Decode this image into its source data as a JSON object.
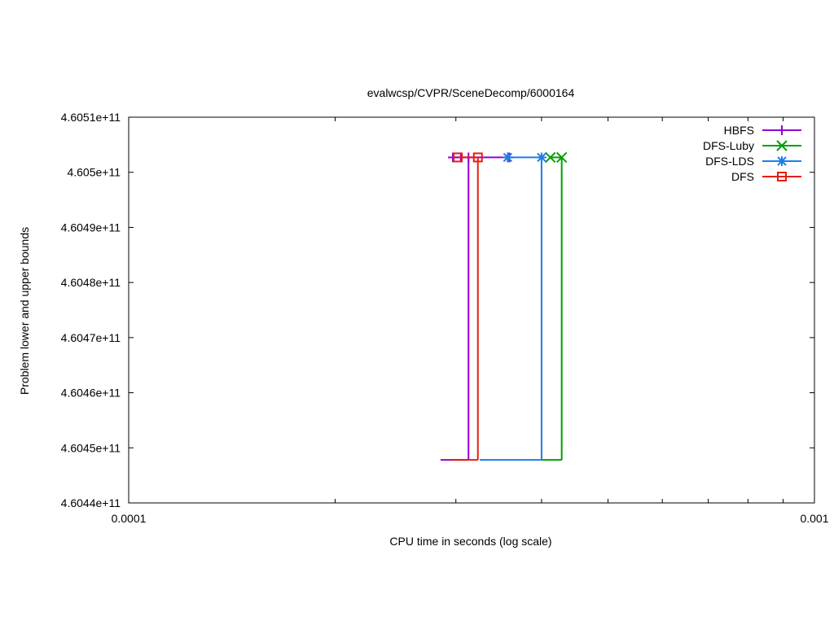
{
  "chart_data": {
    "type": "line",
    "title": "evalwcsp/CVPR/SceneDecomp/6000164",
    "xlabel": "CPU time in seconds (log scale)",
    "ylabel": "Problem lower and upper bounds",
    "x_scale": "log",
    "xlim": [
      0.0001,
      0.001
    ],
    "ylim": [
      460440000000,
      460510000000
    ],
    "x_ticks": [
      {
        "value": 0.0001,
        "label": "0.0001"
      },
      {
        "value": 0.001,
        "label": "0.001"
      }
    ],
    "y_ticks": [
      {
        "value": 460440000000,
        "label": "4.6044e+11"
      },
      {
        "value": 460450000000,
        "label": "4.6045e+11"
      },
      {
        "value": 460460000000,
        "label": "4.6046e+11"
      },
      {
        "value": 460470000000,
        "label": "4.6047e+11"
      },
      {
        "value": 460480000000,
        "label": "4.6048e+11"
      },
      {
        "value": 460490000000,
        "label": "4.6049e+11"
      },
      {
        "value": 460500000000,
        "label": "4.605e+11"
      },
      {
        "value": 460510000000,
        "label": "4.6051e+11"
      }
    ],
    "grid": false,
    "legend_position": "top-right",
    "series": [
      {
        "name": "HBFS",
        "color": "#9400d3",
        "marker": "plus",
        "lower": [
          [
            0.000285,
            460447800000
          ],
          [
            0.000313,
            460447800000
          ]
        ],
        "upper": [
          [
            0.000297,
            460502700000
          ],
          [
            0.000305,
            460502700000
          ],
          [
            0.000313,
            460502700000
          ],
          [
            0.000359,
            460502700000
          ]
        ],
        "jump_x": 0.000313
      },
      {
        "name": "DFS-Luby",
        "color": "#00a000",
        "marker": "x",
        "lower": [
          [
            0.0004,
            460447800000
          ],
          [
            0.000428,
            460447800000
          ]
        ],
        "upper": [
          [
            0.000412,
            460502700000
          ],
          [
            0.000428,
            460502700000
          ]
        ],
        "jump_x": 0.000428
      },
      {
        "name": "DFS-LDS",
        "color": "#1e7ee6",
        "marker": "star",
        "lower": [
          [
            0.000325,
            460447800000
          ],
          [
            0.0004,
            460447800000
          ]
        ],
        "upper": [
          [
            0.000357,
            460502700000
          ],
          [
            0.0004,
            460502700000
          ]
        ],
        "jump_x": 0.0004
      },
      {
        "name": "DFS",
        "color": "#e51e10",
        "marker": "box",
        "lower": [
          [
            0.000295,
            460447800000
          ],
          [
            0.000323,
            460447800000
          ]
        ],
        "upper": [
          [
            0.000302,
            460502700000
          ],
          [
            0.000323,
            460502700000
          ]
        ],
        "jump_x": 0.000323
      }
    ]
  }
}
